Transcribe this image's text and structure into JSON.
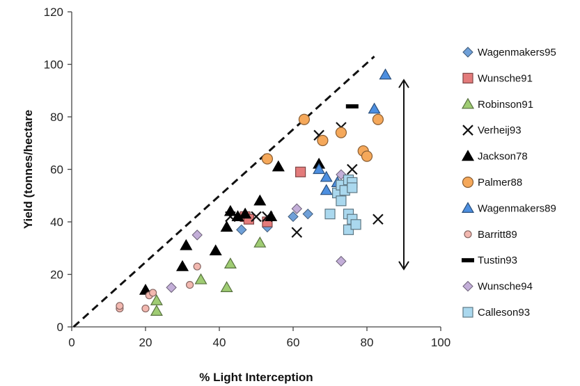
{
  "chart_data": {
    "type": "scatter",
    "xlabel": "% Light Interception",
    "ylabel": "Yield (tonnes/hectare",
    "xlim": [
      0,
      100
    ],
    "ylim": [
      0,
      120
    ],
    "x_ticks": [
      0,
      20,
      40,
      60,
      80,
      100
    ],
    "y_ticks": [
      0,
      20,
      40,
      60,
      80,
      100,
      120
    ],
    "grid": false,
    "legend_position": "right",
    "series": [
      {
        "name": "Wagenmakers95",
        "marker": "diamond",
        "color": "#6fa0d8",
        "points": [
          [
            46,
            37
          ],
          [
            53,
            38
          ],
          [
            60,
            42
          ],
          [
            64,
            43
          ]
        ]
      },
      {
        "name": "Wunsche91",
        "marker": "square",
        "color": "#e37b7b",
        "points": [
          [
            47,
            42
          ],
          [
            48,
            41
          ],
          [
            53,
            40
          ],
          [
            62,
            59
          ]
        ]
      },
      {
        "name": "Robinson91",
        "marker": "triangle",
        "color": "#9fcc73",
        "points": [
          [
            23,
            6
          ],
          [
            23,
            10
          ],
          [
            35,
            18
          ],
          [
            42,
            15
          ],
          [
            43,
            24
          ],
          [
            51,
            32
          ]
        ]
      },
      {
        "name": "Verheij93",
        "marker": "x",
        "color": "#111111",
        "points": [
          [
            50,
            42
          ],
          [
            53,
            42
          ],
          [
            61,
            36
          ],
          [
            67,
            73
          ],
          [
            73,
            76
          ],
          [
            76,
            60
          ],
          [
            83,
            41
          ],
          [
            43,
            42
          ]
        ]
      },
      {
        "name": "Jackson78",
        "marker": "triangle",
        "color": "#000000",
        "points": [
          [
            20,
            14
          ],
          [
            30,
            23
          ],
          [
            31,
            31
          ],
          [
            39,
            29
          ],
          [
            42,
            38
          ],
          [
            43,
            44
          ],
          [
            45,
            42
          ],
          [
            47,
            43
          ],
          [
            51,
            48
          ],
          [
            54,
            42
          ],
          [
            56,
            61
          ],
          [
            67,
            62
          ]
        ]
      },
      {
        "name": "Palmer88",
        "marker": "circle",
        "color": "#f5a85a",
        "points": [
          [
            53,
            64
          ],
          [
            63,
            79
          ],
          [
            68,
            71
          ],
          [
            73,
            74
          ],
          [
            79,
            67
          ],
          [
            80,
            65
          ],
          [
            83,
            79
          ]
        ]
      },
      {
        "name": "Wagenmakers89",
        "marker": "triangle",
        "color": "#4d8fe0",
        "points": [
          [
            67,
            60
          ],
          [
            69,
            52
          ],
          [
            69,
            57
          ],
          [
            72,
            55
          ],
          [
            82,
            83
          ],
          [
            85,
            96
          ]
        ]
      },
      {
        "name": "Barritt89",
        "marker": "circle",
        "color": "#f2b8b0",
        "points": [
          [
            13,
            7
          ],
          [
            13,
            8
          ],
          [
            20,
            7
          ],
          [
            21,
            12
          ],
          [
            22,
            13
          ],
          [
            32,
            16
          ],
          [
            34,
            23
          ]
        ]
      },
      {
        "name": "Tustin93",
        "marker": "dash",
        "color": "#000000",
        "points": [
          [
            76,
            84
          ]
        ]
      },
      {
        "name": "Wunsche94",
        "marker": "diamond",
        "color": "#c3aed8",
        "points": [
          [
            27,
            15
          ],
          [
            34,
            35
          ],
          [
            61,
            45
          ],
          [
            73,
            25
          ],
          [
            73,
            58
          ]
        ]
      },
      {
        "name": "Calleson93",
        "marker": "square",
        "color": "#aad8ee",
        "points": [
          [
            70,
            43
          ],
          [
            72,
            51
          ],
          [
            73,
            48
          ],
          [
            73,
            54
          ],
          [
            74,
            52
          ],
          [
            75,
            56
          ],
          [
            75,
            43
          ],
          [
            75,
            37
          ],
          [
            76,
            41
          ],
          [
            76,
            55
          ],
          [
            77,
            39
          ],
          [
            76,
            53
          ]
        ]
      }
    ],
    "annotations": [
      "dashed upper boundary line",
      "double-headed vertical arrow"
    ]
  }
}
